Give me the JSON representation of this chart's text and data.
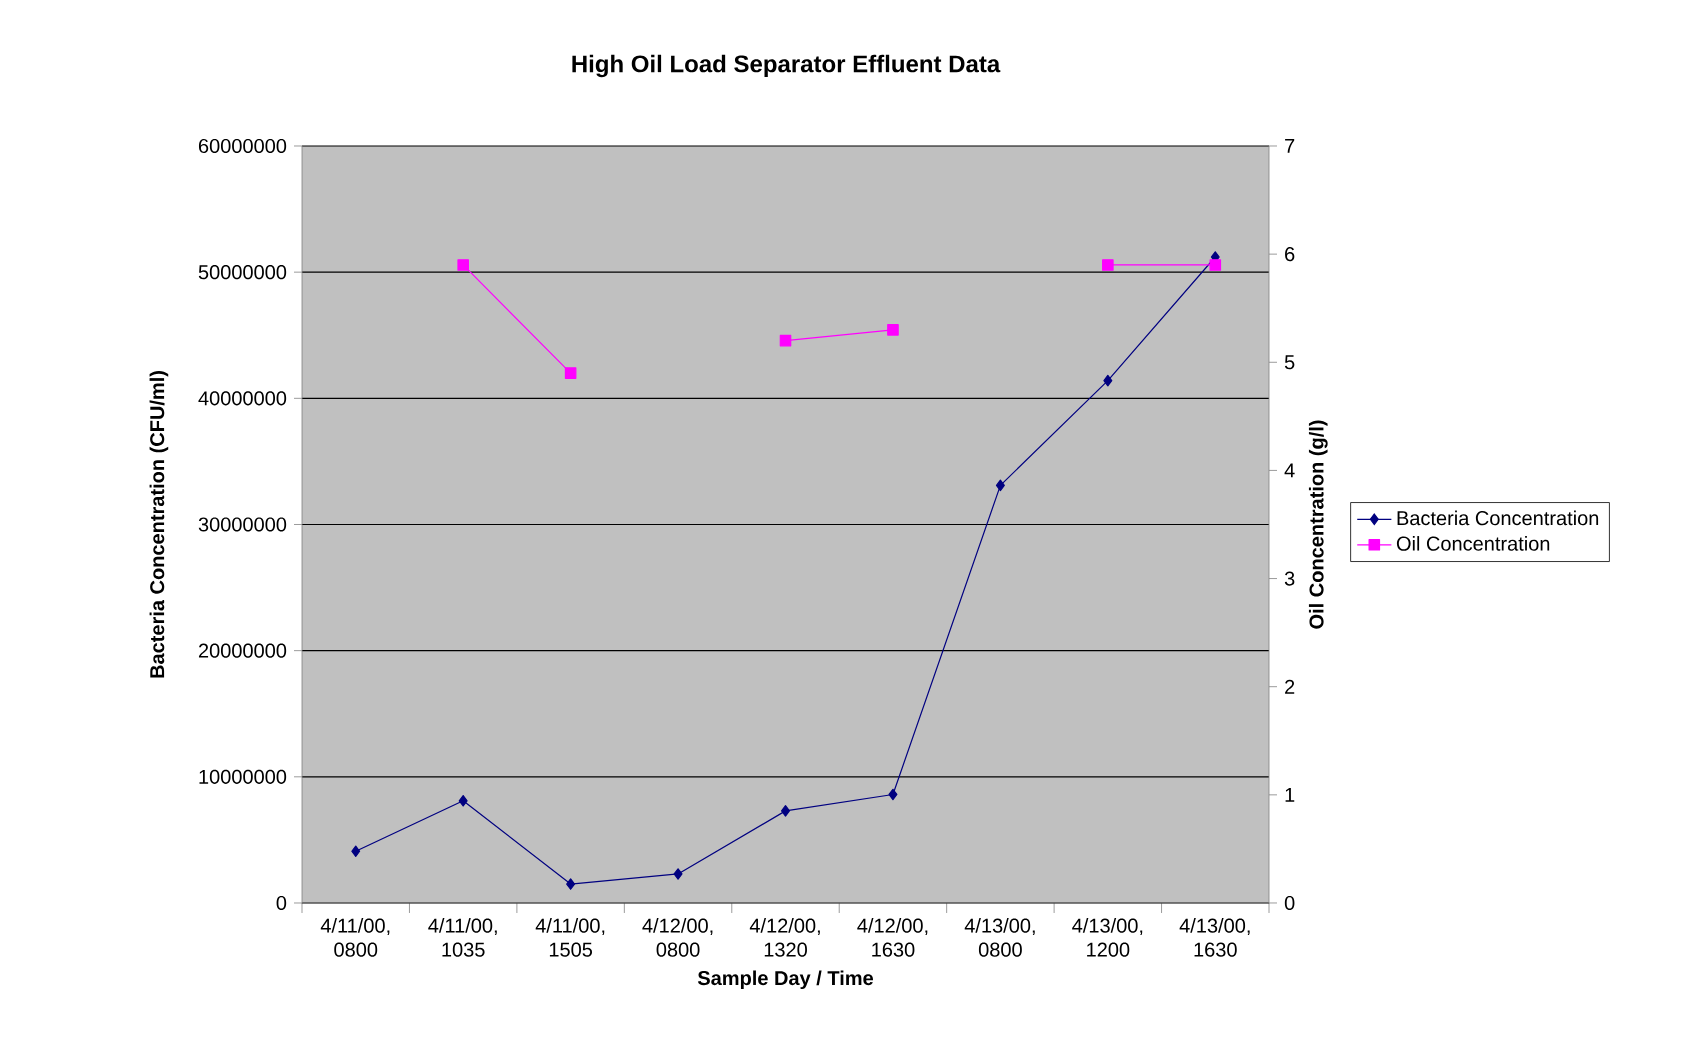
{
  "chart_data": {
    "type": "line",
    "title": "High Oil Load Separator Effluent Data",
    "xlabel": "Sample Day / Time",
    "ylabel": "Bacteria Concentration (CFU/ml)",
    "y2label": "Oil Concentration (g/l)",
    "categories": [
      "4/11/00, 0800",
      "4/11/00, 1035",
      "4/11/00, 1505",
      "4/12/00, 0800",
      "4/12/00, 1320",
      "4/12/00, 1630",
      "4/13/00, 0800",
      "4/13/00, 1200",
      "4/13/00, 1630"
    ],
    "series": [
      {
        "name": "Bacteria Concentration",
        "color": "#000080",
        "marker": "diamond",
        "values": [
          4100000,
          8100000,
          1500000,
          2300000,
          7300000,
          8600000,
          33100000,
          41400000,
          51200000
        ]
      },
      {
        "name": "Oil Concentration",
        "color": "#ff00ff",
        "marker": "square",
        "axis": "y2",
        "values": [
          null,
          5.9,
          4.9,
          null,
          5.2,
          5.3,
          null,
          5.9,
          5.9
        ]
      }
    ],
    "ylim": [
      0,
      60000000
    ],
    "yticks": [
      0,
      10000000,
      20000000,
      30000000,
      40000000,
      50000000,
      60000000
    ],
    "y2lim": [
      0,
      7
    ],
    "y2ticks": [
      0,
      1,
      2,
      3,
      4,
      5,
      6,
      7
    ],
    "grid": "y",
    "legend": "right"
  }
}
